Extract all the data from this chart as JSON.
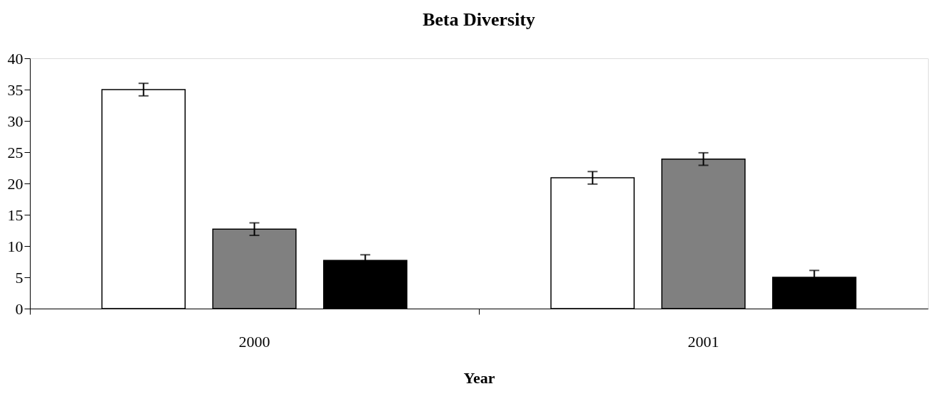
{
  "chart_data": {
    "type": "bar",
    "title": "Beta Diversity",
    "xlabel": "Year",
    "categories": [
      "2000",
      "2001"
    ],
    "series": [
      {
        "color": "#ffffff",
        "values": [
          35.0,
          20.9
        ],
        "errors": [
          1.0,
          1.0
        ]
      },
      {
        "color": "#808080",
        "values": [
          12.7,
          23.9
        ],
        "errors": [
          1.0,
          1.0
        ]
      },
      {
        "color": "#000000",
        "values": [
          7.7,
          5.0
        ],
        "errors": [
          0.9,
          1.1
        ]
      }
    ],
    "ylim": [
      0,
      40
    ],
    "yticks": [
      0,
      5,
      10,
      15,
      20,
      25,
      30,
      35,
      40
    ],
    "grid": false,
    "legend": false
  }
}
